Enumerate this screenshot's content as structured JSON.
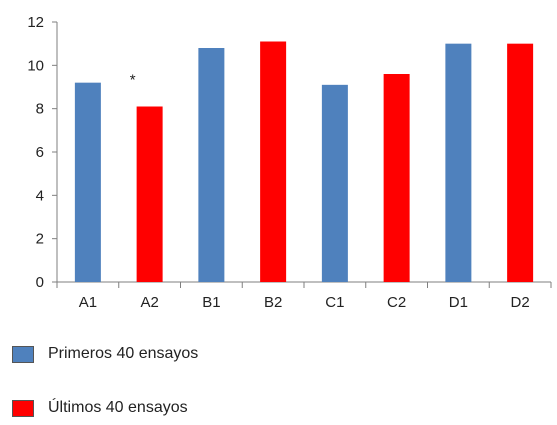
{
  "chart_data": {
    "type": "bar",
    "categories": [
      "A1",
      "A2",
      "B1",
      "B2",
      "C1",
      "C2",
      "D1",
      "D2"
    ],
    "values": [
      9.2,
      8.1,
      10.8,
      11.1,
      9.1,
      9.6,
      11.0,
      11.0
    ],
    "bar_colors": [
      "#4f81bd",
      "#ff0000",
      "#4f81bd",
      "#ff0000",
      "#4f81bd",
      "#ff0000",
      "#4f81bd",
      "#ff0000"
    ],
    "ylim": [
      0,
      12
    ],
    "yticks": [
      "0",
      "2",
      "4",
      "6",
      "8",
      "10",
      "12"
    ],
    "annotations": [
      {
        "category": "A2",
        "text": "*"
      }
    ],
    "series": [
      {
        "name": "Primeros 40 ensayos",
        "color": "#4f81bd",
        "categories": [
          "A1",
          "B1",
          "C1",
          "D1"
        ]
      },
      {
        "name": "Últimos 40 ensayos",
        "color": "#ff0000",
        "categories": [
          "A2",
          "B2",
          "C2",
          "D2"
        ]
      }
    ]
  },
  "legend": {
    "items": [
      {
        "label": "Primeros 40 ensayos",
        "color": "#4f81bd"
      },
      {
        "label": "Últimos 40 ensayos",
        "color": "#ff0000"
      }
    ]
  }
}
